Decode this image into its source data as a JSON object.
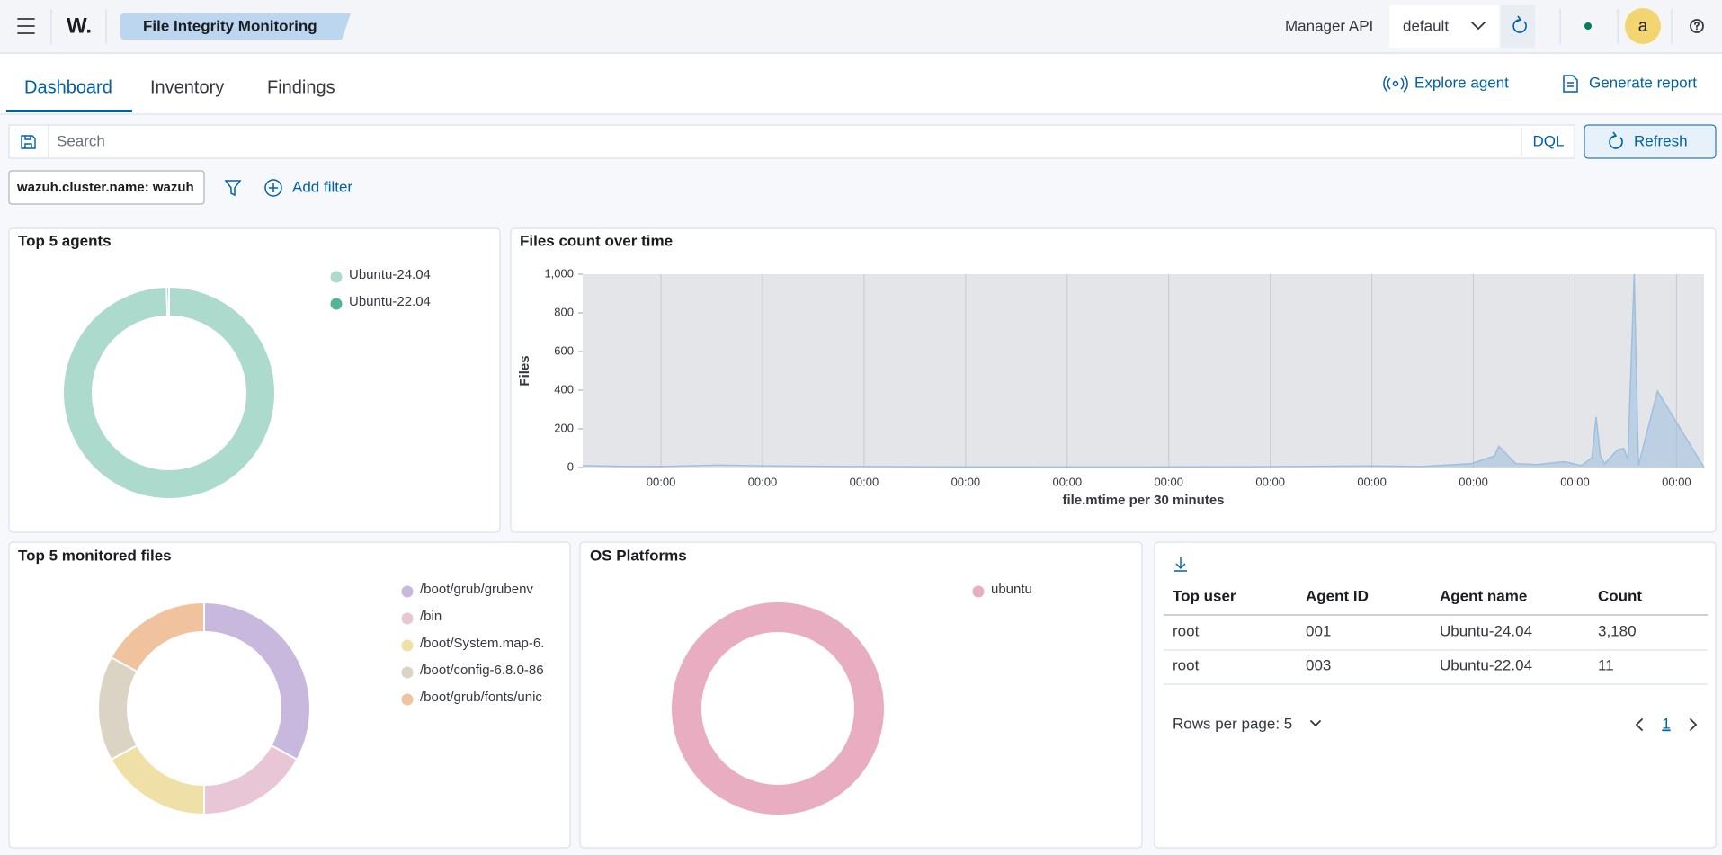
{
  "header": {
    "logo": "W.",
    "title": "File Integrity Monitoring",
    "api_label": "Manager API",
    "api_value": "default",
    "avatar": "a"
  },
  "tabs": [
    "Dashboard",
    "Inventory",
    "Findings"
  ],
  "actions": [
    "Explore agent",
    "Generate report"
  ],
  "search": {
    "placeholder": "Search",
    "language": "DQL",
    "button": "Refresh"
  },
  "filters": {
    "pill": "wazuh.cluster.name: wazuh",
    "add": "Add filter"
  },
  "chart_data": [
    {
      "type": "pie",
      "donut": true,
      "title": "Top 5 agents",
      "categories": [
        "Ubuntu-24.04",
        "Ubuntu-22.04"
      ],
      "values": [
        3180,
        11
      ],
      "colors": [
        "#acdacc",
        "#54b399"
      ]
    },
    {
      "type": "area",
      "title": "Files count over time",
      "ylabel": "Files",
      "xlabel": "file.mtime per 30 minutes",
      "x": [
        -37,
        -20,
        0,
        28,
        51,
        90,
        140,
        227,
        280,
        336,
        360,
        383,
        394,
        396,
        404,
        414,
        427,
        435,
        440,
        442,
        444,
        446,
        452,
        455,
        457,
        460,
        462,
        471,
        493
      ],
      "values": [
        10,
        6,
        5,
        12,
        8,
        5,
        3,
        3,
        4,
        8,
        5,
        20,
        60,
        110,
        20,
        15,
        30,
        10,
        50,
        262,
        60,
        20,
        90,
        100,
        40,
        1000,
        10,
        395,
        0
      ],
      "color": "#9fbfdf",
      "xlim": [
        -37,
        493
      ],
      "xticks": [
        {
          "value": 0,
          "label": "00:00"
        },
        {
          "value": 48,
          "label": "00:00"
        },
        {
          "value": 96,
          "label": "00:00"
        },
        {
          "value": 144,
          "label": "00:00"
        },
        {
          "value": 192,
          "label": "00:00"
        },
        {
          "value": 240,
          "label": "00:00"
        },
        {
          "value": 288,
          "label": "00:00"
        },
        {
          "value": 336,
          "label": "00:00"
        },
        {
          "value": 384,
          "label": "00:00"
        },
        {
          "value": 432,
          "label": "00:00"
        },
        {
          "value": 480,
          "label": "00:00"
        }
      ],
      "ylim": [
        0,
        1000
      ],
      "yticks": [
        0,
        200,
        400,
        600,
        800,
        {
          "value": 1000,
          "label": "1,000"
        }
      ],
      "grid": true
    },
    {
      "type": "pie",
      "donut": true,
      "title": "Top 5 monitored files",
      "categories": [
        "/boot/grub/grubenv",
        "/bin",
        "/boot/System.map-6.",
        "/boot/config-6.8.0-86",
        "/boot/grub/fonts/unic"
      ],
      "values": [
        33,
        17,
        17,
        16,
        17
      ],
      "colors": [
        "#c9b8dd",
        "#e9c6d6",
        "#eee0a6",
        "#dbd3c3",
        "#f0c29e"
      ]
    },
    {
      "type": "pie",
      "donut": true,
      "title": "OS Platforms",
      "categories": [
        "ubuntu"
      ],
      "values": [
        100
      ],
      "colors": [
        "#e8adc0"
      ]
    }
  ],
  "table": {
    "columns": [
      "Top user",
      "Agent ID",
      "Agent name",
      "Count"
    ],
    "rows": [
      [
        "root",
        "001",
        "Ubuntu-24.04",
        "3,180"
      ],
      [
        "root",
        "003",
        "Ubuntu-22.04",
        "11"
      ]
    ],
    "rows_per_page": "Rows per page: 5",
    "page": "1"
  }
}
